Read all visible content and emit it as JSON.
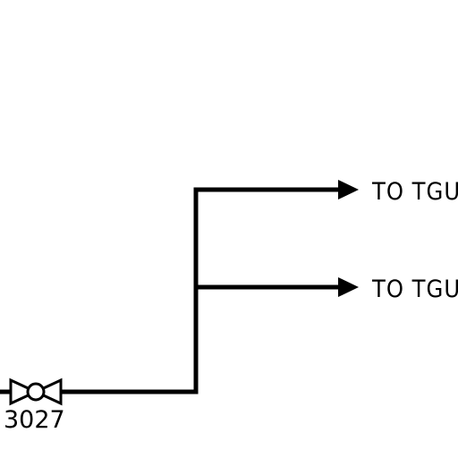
{
  "destinations": [
    {
      "label": "TO TGU"
    },
    {
      "label": "TO TGU"
    }
  ],
  "valve": {
    "tag": "3027",
    "icon": "gate-valve-icon"
  },
  "colors": {
    "line": "#000000",
    "background": "#ffffff"
  }
}
